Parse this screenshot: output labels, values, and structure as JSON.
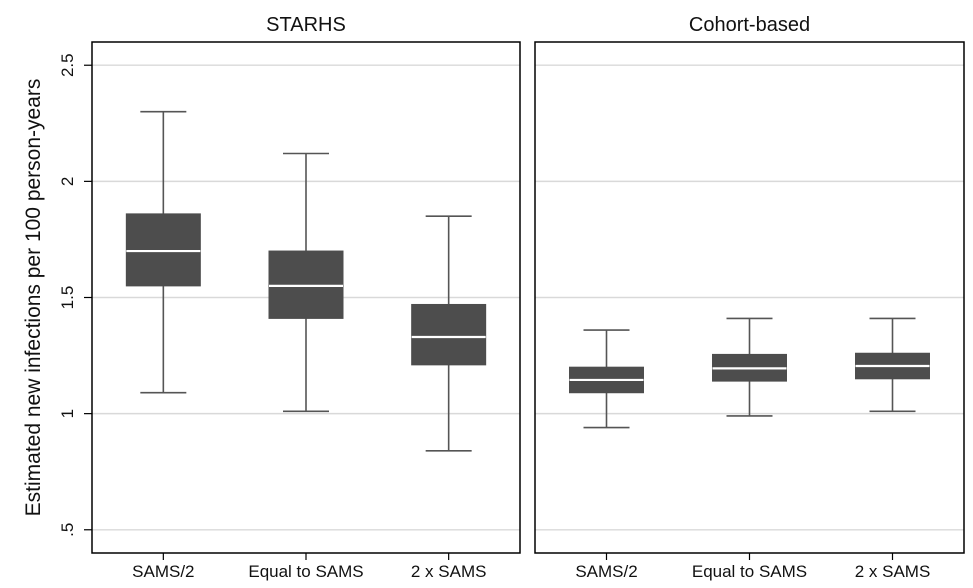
{
  "chart_data": {
    "type": "box",
    "ylabel": "Estimated new infections per 100 person-years",
    "ylim": [
      0.4,
      2.6
    ],
    "yticks": [
      0.5,
      1,
      1.5,
      2,
      2.5
    ],
    "ytick_labels": [
      ".5",
      "1",
      "1.5",
      "2",
      "2.5"
    ],
    "grid": true,
    "categories": [
      "SAMS/2",
      "Equal to SAMS",
      "2 x SAMS"
    ],
    "panels": [
      {
        "title": "STARHS",
        "boxes": [
          {
            "category": "SAMS/2",
            "whisker_low": 1.09,
            "q1": 1.55,
            "median": 1.7,
            "q3": 1.86,
            "whisker_high": 2.3
          },
          {
            "category": "Equal to SAMS",
            "whisker_low": 1.01,
            "q1": 1.41,
            "median": 1.55,
            "q3": 1.7,
            "whisker_high": 2.12
          },
          {
            "category": "2 x SAMS",
            "whisker_low": 0.84,
            "q1": 1.21,
            "median": 1.33,
            "q3": 1.47,
            "whisker_high": 1.85
          }
        ]
      },
      {
        "title": "Cohort-based",
        "boxes": [
          {
            "category": "SAMS/2",
            "whisker_low": 0.94,
            "q1": 1.09,
            "median": 1.145,
            "q3": 1.2,
            "whisker_high": 1.36
          },
          {
            "category": "Equal to SAMS",
            "whisker_low": 0.99,
            "q1": 1.14,
            "median": 1.195,
            "q3": 1.255,
            "whisker_high": 1.41
          },
          {
            "category": "2 x SAMS",
            "whisker_low": 1.01,
            "q1": 1.15,
            "median": 1.205,
            "q3": 1.26,
            "whisker_high": 1.41
          }
        ]
      }
    ],
    "colors": {
      "box_fill": "#4d4d4d",
      "median_line": "#ffffff",
      "whisker": "#555555",
      "grid": "#d9d9d9",
      "frame": "#000000"
    }
  }
}
